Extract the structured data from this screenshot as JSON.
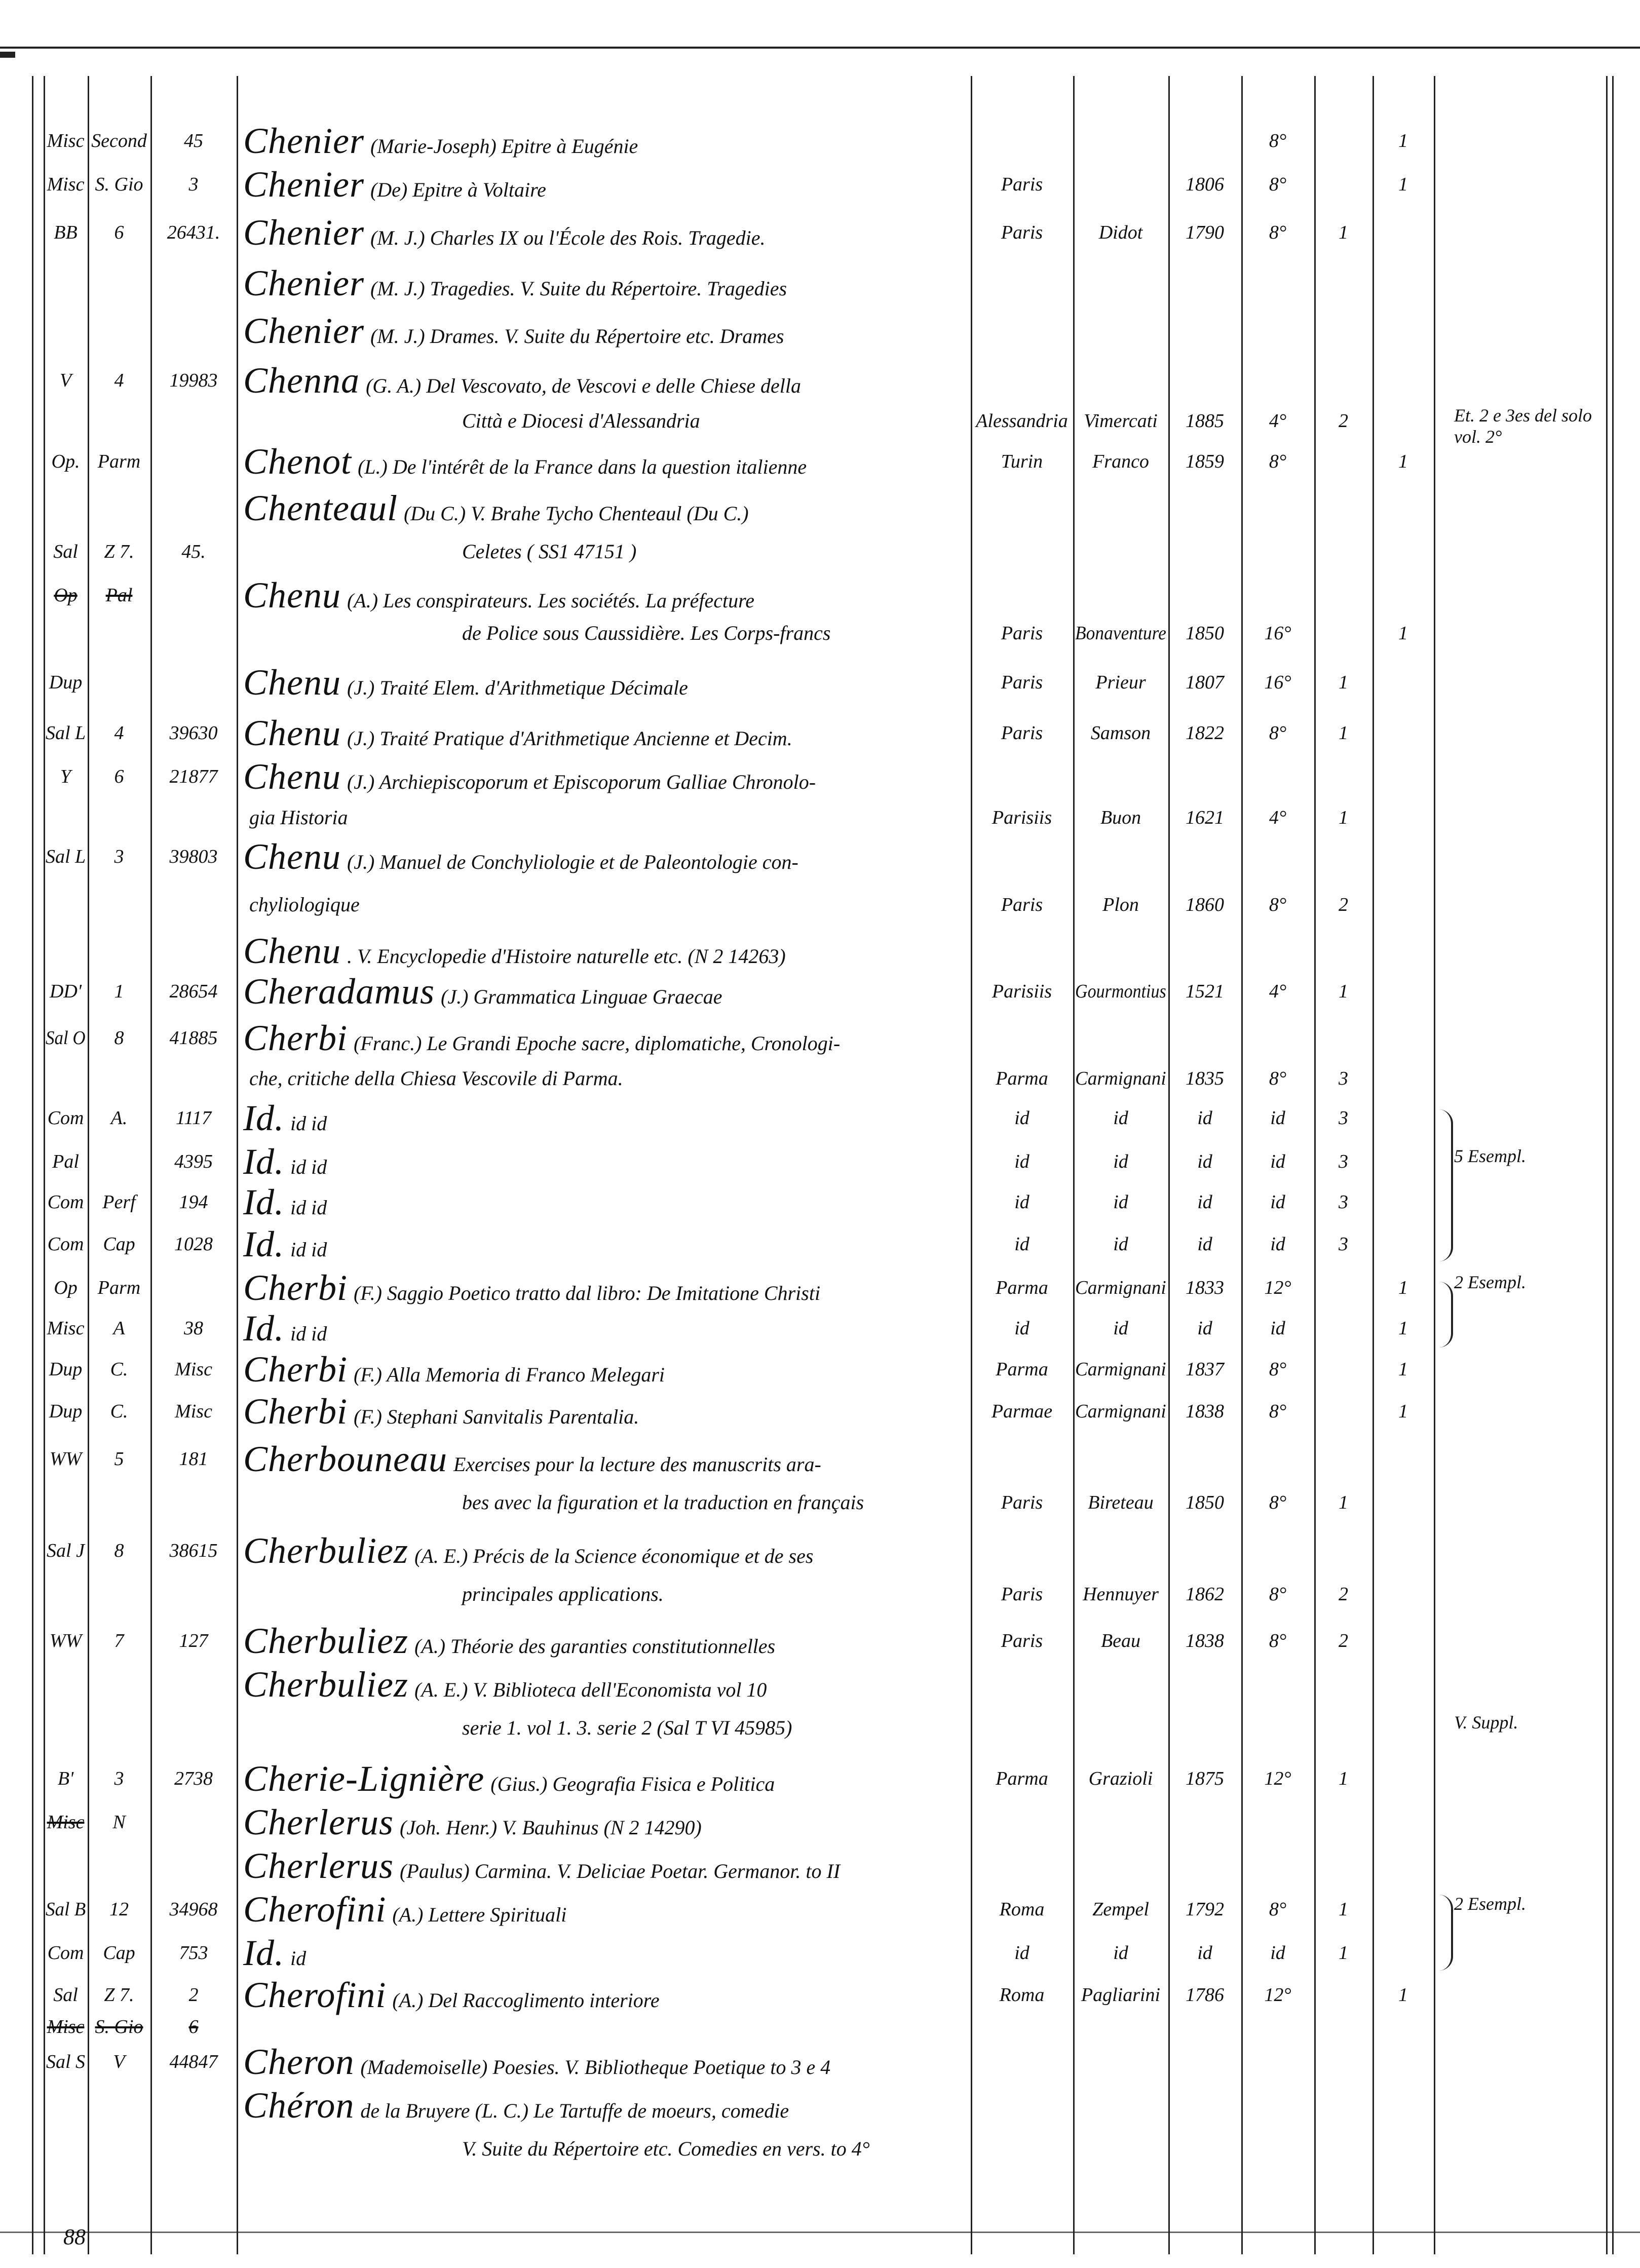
{
  "page_number": "88",
  "lines": [
    {
      "c1": "Misc",
      "c2": "Second",
      "c3": "45",
      "head": "Chenier",
      "text": "(Marie-Joseph) Epitre à Eugénie",
      "format": "8°",
      "v2": "1"
    },
    {
      "c1": "Misc",
      "c2": "S. Gio",
      "c3": "3",
      "head": "Chenier",
      "text": "(De) Epitre à Voltaire",
      "place": "Paris",
      "year": "1806",
      "format": "8°",
      "v2": "1"
    },
    {
      "c1": "BB",
      "c2": "6",
      "c3": "26431.",
      "head": "Chenier",
      "text": "(M. J.) Charles IX ou l'École des Rois. Tragedie.",
      "place": "Paris",
      "publisher": "Didot",
      "year": "1790",
      "format": "8°",
      "v1": "1"
    },
    {
      "head": "Chenier",
      "text": "(M. J.) Tragedies. V. Suite du Répertoire. Tragedies"
    },
    {
      "head": "Chenier",
      "text": "(M. J.) Drames. V. Suite du Répertoire etc. Drames"
    },
    {
      "c1": "V",
      "c2": "4",
      "c3": "19983",
      "head": "Chenna",
      "text": "(G. A.) Del Vescovato, de Vescovi e delle Chiese della"
    },
    {
      "text": "Città e Diocesi d'Alessandria",
      "indent": true,
      "place": "Alessandria",
      "publisher": "Vimercati",
      "year": "1885",
      "format": "4°",
      "v1": "2",
      "note": "Et. 2 e 3es del solo vol. 2°"
    },
    {
      "c1": "Op.",
      "c2": "Parm",
      "head": "Chenot",
      "text": "(L.) De l'intérêt de la France dans la question italienne",
      "place": "Turin",
      "publisher": "Franco",
      "year": "1859",
      "format": "8°",
      "v2": "1"
    },
    {
      "head": "Chenteaul",
      "text": "(Du C.) V. Brahe Tycho Chenteaul (Du C.)"
    },
    {
      "c1": "Sal",
      "c2": "Z 7.",
      "c3": "45.",
      "text": "Celetes ( SS1 47151 )",
      "indent": true
    },
    {
      "c1": "Op",
      "c2": "Pal",
      "struck": true,
      "head": "Chenu",
      "text": "(A.) Les conspirateurs. Les sociétés. La préfecture"
    },
    {
      "text": "de Police sous Caussidière. Les Corps-francs",
      "indent": true,
      "place": "Paris",
      "publisher": "Bonaventure",
      "year": "1850",
      "format": "16°",
      "v2": "1"
    },
    {
      "c1": "Dup",
      "head": "Chenu",
      "text": "(J.) Traité Elem. d'Arithmetique Décimale",
      "place": "Paris",
      "publisher": "Prieur",
      "year": "1807",
      "format": "16°",
      "v1": "1"
    },
    {
      "c1": "Sal L",
      "c2": "4",
      "c3": "39630",
      "head": "Chenu",
      "text": "(J.) Traité Pratique d'Arithmetique Ancienne et Decim.",
      "place": "Paris",
      "publisher": "Samson",
      "year": "1822",
      "format": "8°",
      "v1": "1"
    },
    {
      "c1": "Y",
      "c2": "6",
      "c3": "21877",
      "head": "Chenu",
      "text": "(J.) Archiepiscoporum et Episcoporum Galliae Chronolo-"
    },
    {
      "text": "gia Historia",
      "indent": false,
      "place": "Parisiis",
      "publisher": "Buon",
      "year": "1621",
      "format": "4°",
      "v1": "1"
    },
    {
      "c1": "Sal L",
      "c2": "3",
      "c3": "39803",
      "head": "Chenu",
      "text": "(J.) Manuel de Conchyliologie et de Paleontologie con-"
    },
    {
      "text": "chyliologique",
      "indent": false,
      "place": "Paris",
      "publisher": "Plon",
      "year": "1860",
      "format": "8°",
      "v1": "2"
    },
    {
      "head": "Chenu",
      "text": ". V. Encyclopedie d'Histoire naturelle etc. (N 2 14263)"
    },
    {
      "c1": "DD'",
      "c2": "1",
      "c3": "28654",
      "head": "Cheradamus",
      "text": "(J.) Grammatica Linguae Graecae",
      "place": "Parisiis",
      "publisher": "Gourmontius",
      "year": "1521",
      "format": "4°",
      "v1": "1"
    },
    {
      "c1": "Sal O",
      "c2": "8",
      "c3": "41885",
      "head": "Cherbi",
      "text": "(Franc.) Le Grandi Epoche sacre, diplomatiche, Cronologi-"
    },
    {
      "text": "che, critiche della Chiesa Vescovile di Parma.",
      "indent": false,
      "place": "Parma",
      "publisher": "Carmignani",
      "year": "1835",
      "format": "8°",
      "v1": "3"
    },
    {
      "c1": "Com",
      "c2": "A.",
      "c3": "1117",
      "head": "Id.",
      "text": "id            id",
      "place": "id",
      "publisher": "id",
      "year": "id",
      "format": "id",
      "v1": "3"
    },
    {
      "c1": "Pal",
      "c3": "4395",
      "head": "Id.",
      "text": "id            id",
      "place": "id",
      "publisher": "id",
      "year": "id",
      "format": "id",
      "v1": "3",
      "note": "5 Esempl."
    },
    {
      "c1": "Com",
      "c2": "Perf",
      "c3": "194",
      "head": "Id.",
      "text": "id            id",
      "place": "id",
      "publisher": "id",
      "year": "id",
      "format": "id",
      "v1": "3"
    },
    {
      "c1": "Com",
      "c2": "Cap",
      "c3": "1028",
      "head": "Id.",
      "text": "id            id",
      "place": "id",
      "publisher": "id",
      "year": "id",
      "format": "id",
      "v1": "3"
    },
    {
      "c1": "Op",
      "c2": "Parm",
      "head": "Cherbi",
      "text": "(F.) Saggio Poetico tratto dal libro: De Imitatione Christi",
      "place": "Parma",
      "publisher": "Carmignani",
      "year": "1833",
      "format": "12°",
      "v2": "1",
      "note": "2 Esempl."
    },
    {
      "c1": "Misc",
      "c2": "A",
      "c3": "38",
      "head": "Id.",
      "text": "id            id",
      "place": "id",
      "publisher": "id",
      "year": "id",
      "format": "id",
      "v2": "1"
    },
    {
      "c1": "Dup",
      "c2": "C.",
      "c3": "Misc",
      "head": "Cherbi",
      "text": "(F.) Alla Memoria di Franco Melegari",
      "place": "Parma",
      "publisher": "Carmignani",
      "year": "1837",
      "format": "8°",
      "v2": "1"
    },
    {
      "c1": "Dup",
      "c2": "C.",
      "c3": "Misc",
      "head": "Cherbi",
      "text": "(F.) Stephani Sanvitalis Parentalia.",
      "place": "Parmae",
      "publisher": "Carmignani",
      "year": "1838",
      "format": "8°",
      "v2": "1"
    },
    {
      "c1": "WW",
      "c2": "5",
      "c3": "181",
      "head": "Cherbouneau",
      "text": "Exercises pour la lecture des manuscrits ara-"
    },
    {
      "text": "bes avec la figuration et la traduction en français",
      "indent": true,
      "place": "Paris",
      "publisher": "Bireteau",
      "year": "1850",
      "format": "8°",
      "v1": "1"
    },
    {
      "c1": "Sal J",
      "c2": "8",
      "c3": "38615",
      "head": "Cherbuliez",
      "text": "(A. E.) Précis de la Science économique et de ses"
    },
    {
      "text": "principales applications.",
      "indent": true,
      "place": "Paris",
      "publisher": "Hennuyer",
      "year": "1862",
      "format": "8°",
      "v1": "2"
    },
    {
      "c1": "WW",
      "c2": "7",
      "c3": "127",
      "head": "Cherbuliez",
      "text": "(A.) Théorie des garanties constitutionnelles",
      "place": "Paris",
      "publisher": "Beau",
      "year": "1838",
      "format": "8°",
      "v1": "2"
    },
    {
      "head": "Cherbuliez",
      "text": "(A. E.) V. Biblioteca dell'Economista vol 10"
    },
    {
      "text": "serie 1. vol 1. 3. serie 2 (Sal T VI 45985)",
      "indent": true,
      "note": "V. Suppl."
    },
    {
      "c1": "B'",
      "c2": "3",
      "c3": "2738",
      "head": "Cherie-Lignière",
      "text": "(Gius.) Geografia Fisica e Politica",
      "place": "Parma",
      "publisher": "Grazioli",
      "year": "1875",
      "format": "12°",
      "v1": "1"
    },
    {
      "c1": "Misc",
      "c2": "N",
      "struck1": true,
      "head": "Cherlerus",
      "text": "(Joh. Henr.) V. Bauhinus (N 2 14290)"
    },
    {
      "head": "Cherlerus",
      "text": "(Paulus) Carmina. V. Deliciae Poetar. Germanor. to II"
    },
    {
      "c1": "Sal B",
      "c2": "12",
      "c3": "34968",
      "head": "Cherofini",
      "text": "(A.) Lettere Spirituali",
      "place": "Roma",
      "publisher": "Zempel",
      "year": "1792",
      "format": "8°",
      "v1": "1",
      "note": "2 Esempl."
    },
    {
      "c1": "Com",
      "c2": "Cap",
      "c3": "753",
      "head": "Id.",
      "text": "id",
      "place": "id",
      "publisher": "id",
      "year": "id",
      "format": "id",
      "v1": "1"
    },
    {
      "c1": "Sal",
      "c2": "Z 7.",
      "c3": "2",
      "head": "Cherofini",
      "text": "(A.) Del Raccoglimento interiore",
      "place": "Roma",
      "publisher": "Pagliarini",
      "year": "1786",
      "format": "12°",
      "v2": "1"
    },
    {
      "c1": "Misc",
      "c2": "S. Gio",
      "c3": "6",
      "struck": true
    },
    {
      "c1": "Sal S",
      "c2": "V",
      "c3": "44847",
      "head": "Cheron",
      "text": "(Mademoiselle) Poesies. V. Bibliotheque Poetique to 3 e 4"
    },
    {
      "head": "Chéron",
      "text": "de la Bruyere (L. C.) Le Tartuffe de moeurs, comedie"
    },
    {
      "text": "V. Suite du Répertoire etc. Comedies en vers. to 4°",
      "indent": true
    }
  ]
}
